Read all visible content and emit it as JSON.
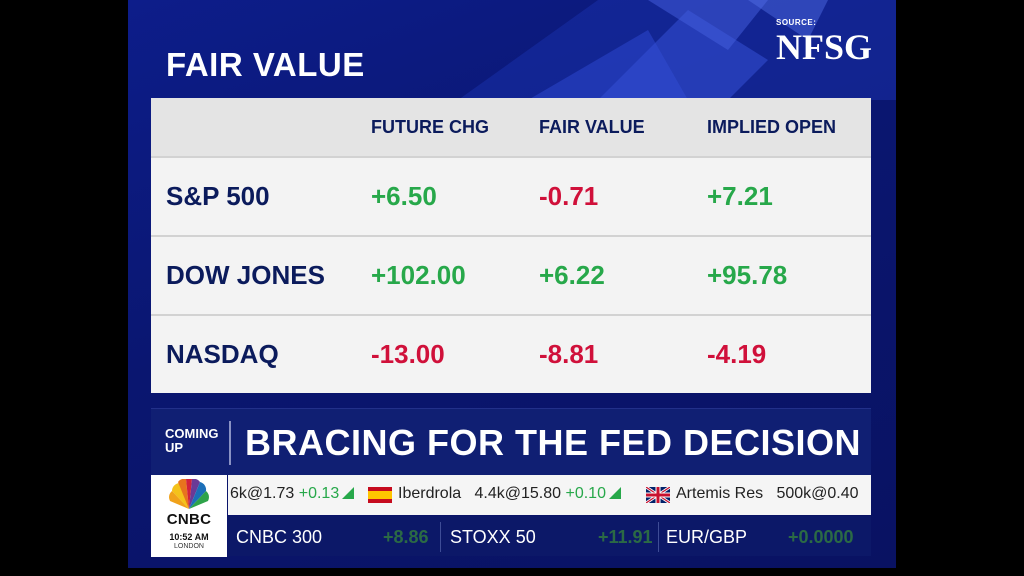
{
  "header": {
    "title": "FAIR VALUE",
    "source_label": "SOURCE:",
    "source_name": "NFSG"
  },
  "table": {
    "columns": [
      "",
      "FUTURE CHG",
      "FAIR VALUE",
      "IMPLIED OPEN"
    ],
    "rows": [
      {
        "name": "S&P 500",
        "future_chg": "+6.50",
        "fair_value": "-0.71",
        "implied_open": "+7.21"
      },
      {
        "name": "DOW JONES",
        "future_chg": "+102.00",
        "fair_value": "+6.22",
        "implied_open": "+95.78"
      },
      {
        "name": "NASDAQ",
        "future_chg": "-13.00",
        "fair_value": "-8.81",
        "implied_open": "-4.19"
      }
    ]
  },
  "coming_up": {
    "label_line1": "COMING",
    "label_line2": "UP",
    "headline": "BRACING FOR THE FED DECISION"
  },
  "logo": {
    "word": "CNBC",
    "time": "10:52 AM",
    "city": "LONDON"
  },
  "ticker_top": [
    {
      "text": "6k@1.73",
      "change": "+0.13"
    },
    {
      "name": "Iberdrola",
      "text": "4.4k@15.80",
      "change": "+0.10",
      "flag": "spain-flag-icon"
    },
    {
      "name": "Artemis Res",
      "text": "500k@0.40",
      "flag": "uk-flag-icon"
    }
  ],
  "ticker_bottom": [
    {
      "name": "CNBC 300",
      "value": "+8.86"
    },
    {
      "name": "STOXX 50",
      "value": "+11.91"
    },
    {
      "name": "EUR/GBP",
      "value": "+0.0000"
    }
  ],
  "colors": {
    "positive": "#27a84a",
    "negative": "#d0103a",
    "navy": "#0b1b5c",
    "background": "#0a1670"
  }
}
